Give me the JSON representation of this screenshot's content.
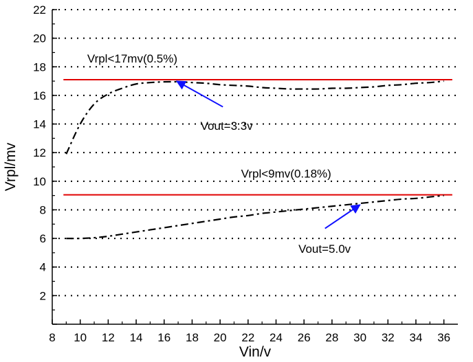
{
  "chart_data": {
    "type": "line",
    "xlabel": "Vin/v",
    "ylabel": "Vrpl/mv",
    "xlim": [
      8,
      37
    ],
    "ylim": [
      0,
      22
    ],
    "xticks": [
      8,
      10,
      12,
      14,
      16,
      18,
      20,
      22,
      24,
      26,
      28,
      30,
      32,
      34,
      36
    ],
    "yticks": [
      2,
      4,
      6,
      8,
      10,
      12,
      14,
      16,
      18,
      20,
      22
    ],
    "grid": "horizontal-dotted",
    "series": [
      {
        "name": "Vout=3.3v",
        "style": "dash-dot",
        "color": "#000000",
        "x": [
          9,
          10,
          11,
          12,
          13,
          14,
          15,
          16,
          17,
          18,
          19,
          20,
          21,
          22,
          23,
          24,
          25,
          26,
          27,
          28,
          29,
          30,
          31,
          32,
          33,
          34,
          35,
          36
        ],
        "y": [
          11.9,
          14.0,
          15.4,
          16.1,
          16.5,
          16.8,
          16.9,
          16.95,
          16.95,
          16.9,
          16.85,
          16.75,
          16.7,
          16.65,
          16.55,
          16.5,
          16.45,
          16.45,
          16.45,
          16.5,
          16.5,
          16.55,
          16.6,
          16.7,
          16.75,
          16.85,
          16.9,
          17.0
        ]
      },
      {
        "name": "Vout=5.0v",
        "style": "dash-dot",
        "color": "#000000",
        "x": [
          9,
          10,
          11,
          12,
          13,
          14,
          15,
          16,
          17,
          18,
          19,
          20,
          21,
          22,
          23,
          24,
          25,
          26,
          27,
          28,
          29,
          30,
          31,
          32,
          33,
          34,
          35,
          36
        ],
        "y": [
          6.0,
          6.0,
          6.05,
          6.15,
          6.3,
          6.45,
          6.6,
          6.75,
          6.9,
          7.05,
          7.2,
          7.35,
          7.5,
          7.6,
          7.75,
          7.85,
          7.95,
          8.05,
          8.15,
          8.25,
          8.35,
          8.45,
          8.55,
          8.65,
          8.75,
          8.8,
          8.9,
          9.0
        ]
      }
    ],
    "limit_lines": [
      {
        "y": 17.1,
        "color": "#e00000",
        "label": "Vrpl<17mv(0.5%)"
      },
      {
        "y": 9.05,
        "color": "#e00000",
        "label": "Vrpl<9mv(0.18%)"
      }
    ],
    "annotations": [
      {
        "text": "Vout=3.3v",
        "text_x": 18.6,
        "text_y": 13.6,
        "arrow_from": [
          20.2,
          15.2
        ],
        "arrow_to": [
          16.9,
          17.0
        ],
        "color": "#1010ff"
      },
      {
        "text": "Vout=5.0v",
        "text_x": 25.6,
        "text_y": 5.0,
        "arrow_from": [
          27.5,
          6.7
        ],
        "arrow_to": [
          30.0,
          8.35
        ],
        "color": "#1010ff"
      }
    ]
  }
}
